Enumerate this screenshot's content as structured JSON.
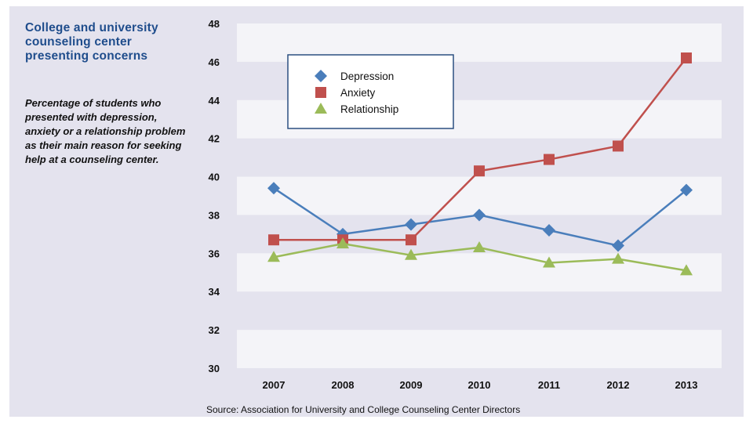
{
  "header": {
    "title": "College and university counseling center presenting concerns",
    "subtitle": "Percentage of students who presented with depression, anxiety or a relationship problem as their main reason for seeking help at a counseling center."
  },
  "footer": {
    "source": "Source: Association for University and College Counseling Center Directors"
  },
  "colors": {
    "background": "#e4e3ee",
    "band": "#f4f4f8",
    "title": "#1f4d8c"
  },
  "chart_data": {
    "type": "line",
    "x": [
      "2007",
      "2008",
      "2009",
      "2010",
      "2011",
      "2012",
      "2013"
    ],
    "ylim": [
      30,
      48
    ],
    "yticks": [
      30,
      32,
      34,
      36,
      38,
      40,
      42,
      44,
      46,
      48
    ],
    "grid": "alternating horizontal bands",
    "legend_position": "top-left",
    "series": [
      {
        "name": "Depression",
        "color": "#4a7ebb",
        "marker": "diamond",
        "values": [
          39.4,
          37.0,
          37.5,
          38.0,
          37.2,
          36.4,
          39.3
        ]
      },
      {
        "name": "Anxiety",
        "color": "#c0504d",
        "marker": "square",
        "values": [
          36.7,
          36.7,
          36.7,
          40.3,
          40.9,
          41.6,
          46.2
        ]
      },
      {
        "name": "Relationship",
        "color": "#9bbb59",
        "marker": "triangle",
        "values": [
          35.8,
          36.5,
          35.9,
          36.3,
          35.5,
          35.7,
          35.1
        ]
      }
    ]
  }
}
